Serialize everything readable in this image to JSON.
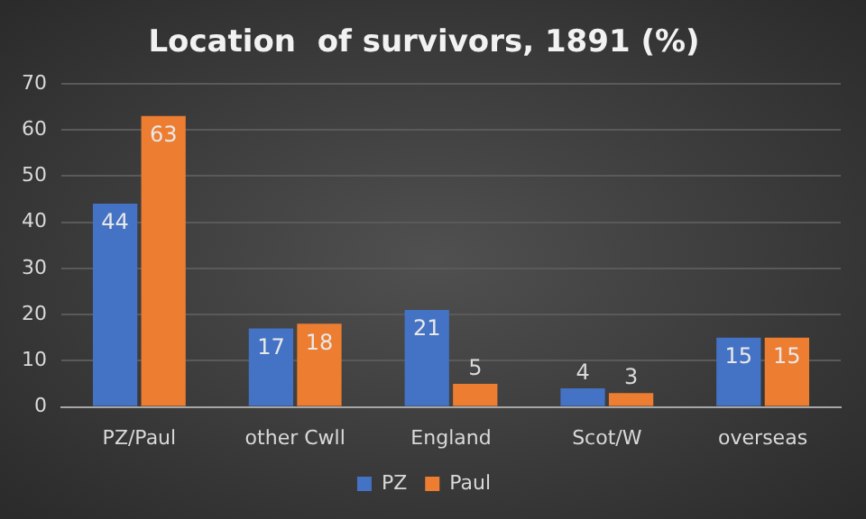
{
  "chart_data": {
    "type": "bar",
    "title": "Location  of survivors, 1891 (%)",
    "categories": [
      "PZ/Paul",
      "other Cwll",
      "England",
      "Scot/W",
      "overseas"
    ],
    "series": [
      {
        "name": "PZ",
        "color": "#4472c4",
        "values": [
          44,
          17,
          21,
          4,
          15
        ]
      },
      {
        "name": "Paul",
        "color": "#ed7d31",
        "values": [
          63,
          18,
          5,
          3,
          15
        ]
      }
    ],
    "ylim": [
      0,
      70
    ],
    "yticks": [
      0,
      10,
      20,
      30,
      40,
      50,
      60,
      70
    ],
    "grid": "y",
    "legend": "bottom",
    "data_labels": true
  }
}
